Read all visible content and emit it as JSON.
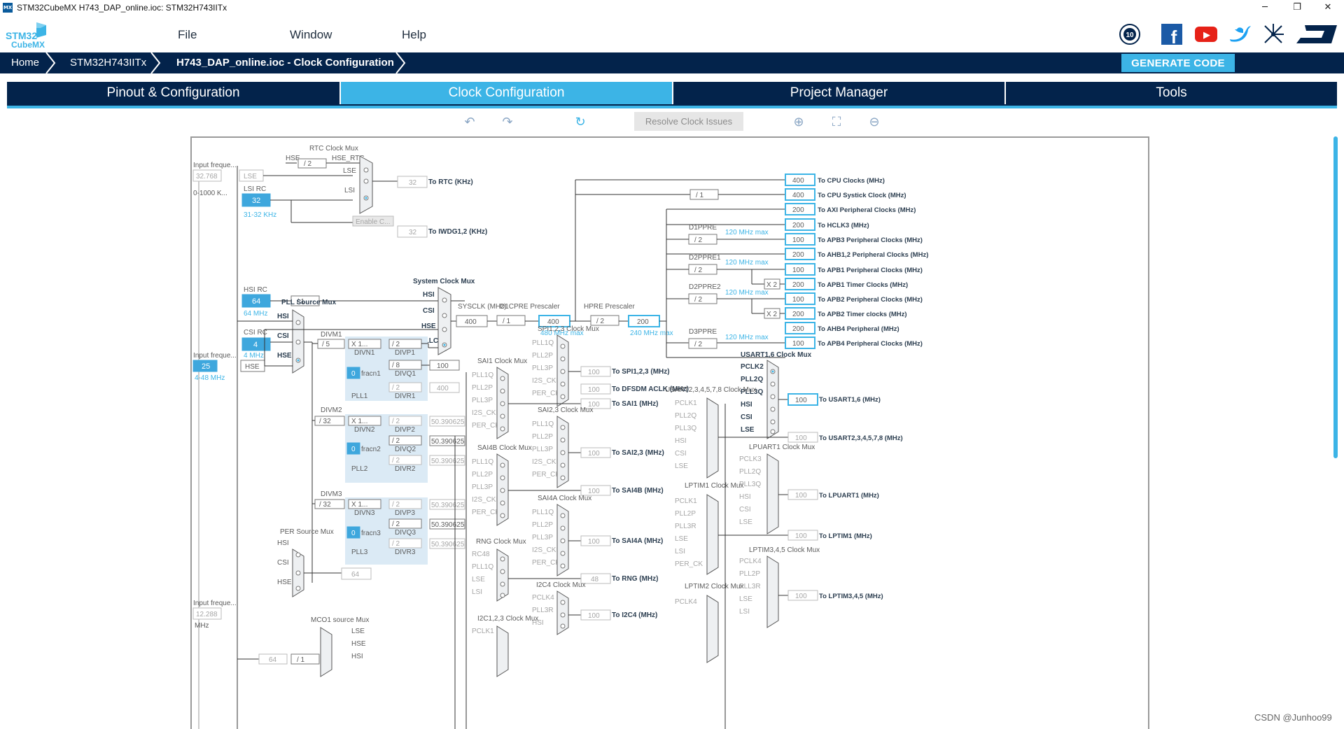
{
  "window": {
    "title": "STM32CubeMX H743_DAP_online.ioc: STM32H743IITx",
    "icon_text": "MX",
    "minimize": "─",
    "restore": "❐",
    "close": "✕"
  },
  "logo": {
    "line1": "STM32",
    "line2": "CubeMX"
  },
  "menu": [
    "File",
    "Window",
    "Help"
  ],
  "social": {
    "anniversary": "10",
    "facebook": "f",
    "youtube": "▶",
    "twitter": "t",
    "network": "✳",
    "st": "ST"
  },
  "breadcrumb": [
    "Home",
    "STM32H743IITx",
    "H743_DAP_online.ioc - Clock Configuration"
  ],
  "generate_code": "GENERATE CODE",
  "tabs": [
    "Pinout & Configuration",
    "Clock Configuration",
    "Project Manager",
    "Tools"
  ],
  "toolbar": {
    "undo": "↶",
    "redo": "↷",
    "refresh": "↻",
    "resolve": "Resolve Clock Issues",
    "zoom_in": "⊕",
    "fit": "⛶",
    "zoom_out": "⊖"
  },
  "watermark": "CSDN @Junhoo99",
  "clock": {
    "rtc_mux": "RTC Clock Mux",
    "hse": "HSE",
    "div2": "/ 2",
    "hse_rtc": "HSE_RTC",
    "lse": "LSE",
    "lsi": "LSI",
    "input_freq": "Input freque...",
    "lse_val": "32.768",
    "lse_range": "0-1000 K...",
    "lse_box": "LSE",
    "lsi_rc": "LSI RC",
    "lsi_val": "32",
    "lsi_range": "31-32 KHz",
    "rtc_out": "32",
    "rtc_label": "To RTC (KHz)",
    "enable_c": "Enable C...",
    "iwdg_out": "32",
    "iwdg_label": "To IWDG1,2 (KHz)",
    "hsi_rc": "HSI RC",
    "hsi_val": "64",
    "hsi_mhz": "64 MHz",
    "hsi_div": "/ 1",
    "sys_mux": "System Clock Mux",
    "hsi": "HSI",
    "csi": "CSI",
    "pllclk": "PLLCLK",
    "sysclk": "SYSCLK (MHz)",
    "sysclk_val": "400",
    "d1cpre": "D1CPRE Prescaler",
    "d1cpre_div": "/ 1",
    "d1cpre_val": "400",
    "max480": "480 MHz max",
    "hpre": "HPRE Prescaler",
    "hpre_div": "/ 2",
    "hpre_val": "200",
    "max240": "240 MHz max",
    "pll_src": "PLL Source Mux",
    "csi_rc": "CSI RC",
    "csi_val": "4",
    "csi_mhz": "4 MHz",
    "hse_input": "Input freque...",
    "hse_val": "25",
    "hse_box": "HSE",
    "hse_range": "4-48 MHz",
    "divm1": "DIVM1",
    "divm1_v": "/ 5",
    "divn1": "DIVN1",
    "x1": "X 1...",
    "divp1": "DIVP1",
    "divp1_v": "/ 2",
    "divq1": "DIVQ1",
    "divq1_v": "/ 8",
    "divq1_out": "100",
    "divr1": "DIVR1",
    "divr1_v": "/ 2",
    "divr1_out": "400",
    "frac0": "0",
    "fracn1": "fracn1",
    "pll1": "PLL1",
    "divm2": "DIVM2",
    "divm2_v": "/ 32",
    "divn2": "DIVN2",
    "divp2": "DIVP2",
    "divq2": "DIVQ2",
    "divr2": "DIVR2",
    "div2_v": "/ 2",
    "pll2_out": "50.390625",
    "fracn2": "fracn2",
    "pll2": "PLL2",
    "divm3": "DIVM3",
    "divm3_v": "/ 32",
    "divn3": "DIVN3",
    "divp3": "DIVP3",
    "divq3": "DIVQ3",
    "divr3": "DIVR3",
    "fracn3": "fracn3",
    "pll3": "PLL3",
    "per_mux": "PER Source Mux",
    "per_out": "64",
    "input_freq3": "Input freque...",
    "i2s_val": "12.288",
    "mhz": "MHz",
    "mco1": "MCO1 source Mux",
    "mco_out": "64",
    "mco_div": "/ 1",
    "outputs": [
      {
        "val": "400",
        "label": "To CPU Clocks (MHz)"
      },
      {
        "val": "400",
        "label": "To CPU Systick Clock (MHz)"
      },
      {
        "val": "200",
        "label": "To AXI Peripheral Clocks (MHz)"
      },
      {
        "val": "200",
        "label": "To HCLK3 (MHz)"
      },
      {
        "val": "100",
        "label": "To APB3 Peripheral Clocks (MHz)"
      },
      {
        "val": "200",
        "label": "To AHB1,2 Peripheral Clocks (MHz)"
      },
      {
        "val": "100",
        "label": "To APB1 Peripheral Clocks (MHz)"
      },
      {
        "val": "200",
        "label": "To APB1 Timer Clocks (MHz)"
      },
      {
        "val": "100",
        "label": "To APB2 Peripheral Clocks (MHz)"
      },
      {
        "val": "200",
        "label": "To APB2 Timer clocks (MHz)"
      },
      {
        "val": "200",
        "label": "To AHB4 Peripheral (MHz)"
      },
      {
        "val": "100",
        "label": "To APB4 Peripheral Clocks (MHz)"
      }
    ],
    "systick_div": "/ 1",
    "d1ppre": "D1PPRE",
    "d2ppre1": "D2PPRE1",
    "d2ppre2": "D2PPRE2",
    "d3ppre": "D3PPRE",
    "ppre_div": "/ 2",
    "max120": "120 MHz max",
    "x2": "X 2",
    "spi_mux": "SPI1,2,3 Clock Mux",
    "spi_out": "100",
    "spi_label": "To SPI1,2,3 (MHz)",
    "dfsdm_out": "100",
    "dfsdm_label": "To DFSDM ACLK (MHz)",
    "sai1_mux": "SAI1 Clock Mux",
    "sai1_out": "100",
    "sai1_label": "To SAI1 (MHz)",
    "sai23_mux": "SAI2,3 Clock Mux",
    "sai23_out": "100",
    "sai23_label": "To SAI2,3 (MHz)",
    "sai4b_mux": "SAI4B Clock Mux",
    "sai4b_out": "100",
    "sai4b_label": "To SAI4B (MHz)",
    "sai4a_mux": "SAI4A Clock Mux",
    "sai4a_out": "100",
    "sai4a_label": "To SAI4A (MHz)",
    "rng_mux": "RNG Clock Mux",
    "rng_out": "48",
    "rng_label": "To RNG (MHz)",
    "i2c4_mux": "I2C4 Clock Mux",
    "i2c4_out": "100",
    "i2c4_label": "To I2C4 (MHz)",
    "i2c123_mux": "I2C1,2,3 Clock Mux",
    "pll1q": "PLL1Q",
    "pll2p": "PLL2P",
    "pll3p": "PLL3P",
    "i2s_ckin": "I2S_CKIN",
    "per_ck": "PER_CK",
    "i2s_ckin_s": "I2S_CKI",
    "rc48": "RC48",
    "pclk4": "PCLK4",
    "pll3r": "PLL3R",
    "pclk1": "PCLK1",
    "usart16_mux": "USART1,6 Clock Mux",
    "pclk2": "PCLK2",
    "pll2q": "PLL2Q",
    "pll3q": "PLL3Q",
    "usart16_out": "100",
    "usart16_label": "To USART1,6 (MHz)",
    "usart2_mux": "USART2,3,4,5,7,8 Clock Mux",
    "pclk1s": "PCLK1",
    "usart2_out": "100",
    "usart2_label": "To USART2,3,4,5,7,8 (MHz)",
    "lpuart_mux": "LPUART1 Clock Mux",
    "pclk3": "PCLK3",
    "lpuart_out": "100",
    "lpuart_label": "To LPUART1 (MHz)",
    "lptim1_mux": "LPTIM1 Clock Mux",
    "pll2ps": "PLL2P",
    "lptim1_out": "100",
    "lptim1_label": "To LPTIM1 (MHz)",
    "lptim345_mux": "LPTIM3,4,5 Clock Mux",
    "lptim345_out": "100",
    "lptim345_label": "To LPTIM3,4,5 (MHz)",
    "lptim2_mux": "LPTIM2 Clock Mux"
  }
}
